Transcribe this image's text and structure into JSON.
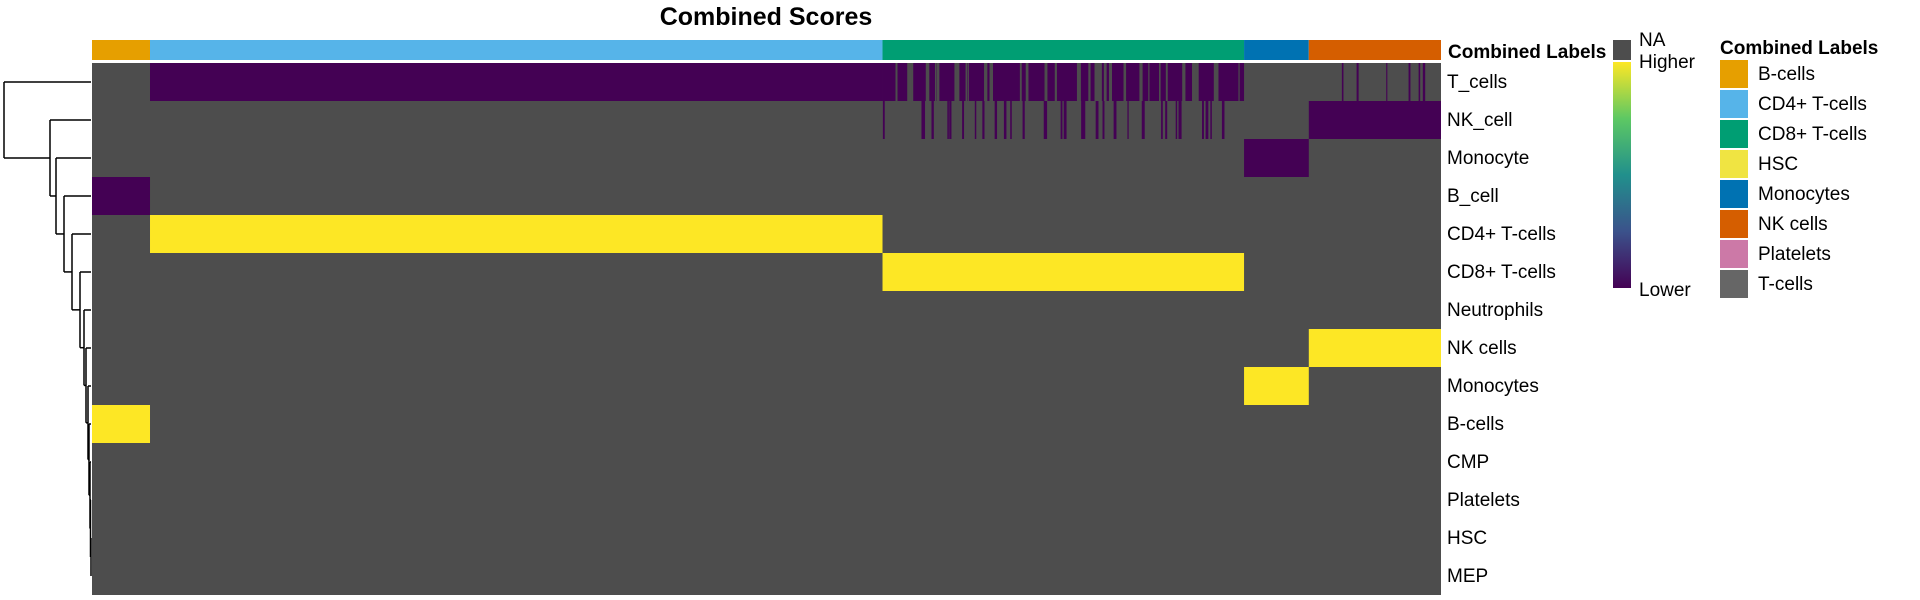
{
  "chart_data": {
    "type": "heatmap",
    "title": "Combined Scores",
    "annotation_title": "Combined Labels",
    "rows": [
      "T_cells",
      "NK_cell",
      "Monocyte",
      "B_cell",
      "CD4+ T-cells",
      "CD8+ T-cells",
      "Neutrophils",
      "NK cells",
      "Monocytes",
      "B-cells",
      "CMP",
      "Platelets",
      "HSC",
      "MEP"
    ],
    "column_groups": [
      {
        "label": "B-cells",
        "fraction": 0.043
      },
      {
        "label": "CD4+ T-cells",
        "fraction": 0.543
      },
      {
        "label": "CD8+ T-cells",
        "fraction": 0.268
      },
      {
        "label": "Monocytes",
        "fraction": 0.048
      },
      {
        "label": "NK cells",
        "fraction": 0.098
      }
    ],
    "color_scale": {
      "low_label": "Lower",
      "high_label": "Higher",
      "na_label": "NA",
      "na_color": "#4D4D4D",
      "colors": [
        "#440154",
        "#3B528B",
        "#21908C",
        "#5DC863",
        "#FDE725"
      ]
    },
    "score_pattern": [
      {
        "row": "T_cells",
        "group": "B-cells",
        "value": null
      },
      {
        "row": "T_cells",
        "group": "CD4+ T-cells",
        "value": "low"
      },
      {
        "row": "T_cells",
        "group": "CD8+ T-cells",
        "value": "low (mixed with NA)"
      },
      {
        "row": "T_cells",
        "group": "Monocytes",
        "value": null
      },
      {
        "row": "T_cells",
        "group": "NK cells",
        "value": "low (sparse)"
      },
      {
        "row": "NK_cell",
        "group": "CD8+ T-cells",
        "value": "low (sparse)"
      },
      {
        "row": "NK_cell",
        "group": "NK cells",
        "value": "low"
      },
      {
        "row": "Monocyte",
        "group": "Monocytes",
        "value": "low"
      },
      {
        "row": "B_cell",
        "group": "B-cells",
        "value": "low"
      },
      {
        "row": "CD4+ T-cells",
        "group": "CD4+ T-cells",
        "value": "high"
      },
      {
        "row": "CD8+ T-cells",
        "group": "CD8+ T-cells",
        "value": "high"
      },
      {
        "row": "NK cells",
        "group": "NK cells",
        "value": "high"
      },
      {
        "row": "Monocytes",
        "group": "Monocytes",
        "value": "high"
      },
      {
        "row": "B-cells",
        "group": "B-cells",
        "value": "high"
      }
    ],
    "legend": {
      "title": "Combined Labels",
      "position": "right",
      "entries": [
        {
          "label": "B-cells",
          "color": "#E69F00"
        },
        {
          "label": "CD4+ T-cells",
          "color": "#56B4E9"
        },
        {
          "label": "CD8+ T-cells",
          "color": "#009E73"
        },
        {
          "label": "HSC",
          "color": "#F0E442"
        },
        {
          "label": "Monocytes",
          "color": "#0072B2"
        },
        {
          "label": "NK cells",
          "color": "#D55E00"
        },
        {
          "label": "Platelets",
          "color": "#CC79A7"
        },
        {
          "label": "T-cells",
          "color": "#666666"
        }
      ]
    },
    "row_dendrogram": true
  }
}
